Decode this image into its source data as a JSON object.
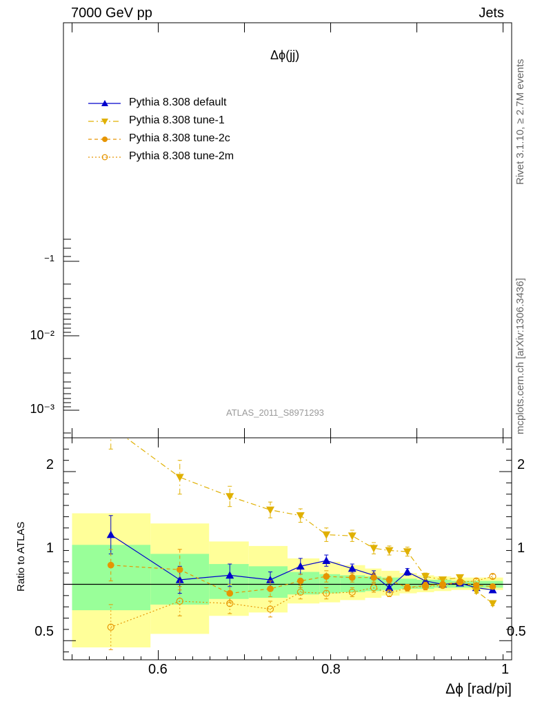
{
  "header": {
    "left": "7000 GeV pp",
    "right": "Jets"
  },
  "side_labels": {
    "rivet": "Rivet 3.1.10, ≥ 2.7M events",
    "mcplots": "mcplots.cern.ch [arXiv:1306.3436]"
  },
  "chart_data": [
    {
      "type": "scatter",
      "title": "Δϕ(jj)",
      "watermark": "ATLAS_2011_S8971293",
      "yscale": "log",
      "ytick_labels": [
        "−1",
        "10⁻²",
        "10⁻³"
      ],
      "ylabel": "",
      "legend_position": "top-left",
      "series": [
        {
          "name": "Pythia 8.308 default",
          "color": "#0000cc",
          "marker": "triangle-up-filled",
          "line": "solid"
        },
        {
          "name": "Pythia 8.308 tune-1",
          "color": "#e0b000",
          "marker": "triangle-down-filled",
          "line": "dash-dot"
        },
        {
          "name": "Pythia 8.308 tune-2c",
          "color": "#e69500",
          "marker": "circle-filled",
          "line": "dashed"
        },
        {
          "name": "Pythia 8.308 tune-2m",
          "color": "#e69500",
          "marker": "circle-open",
          "line": "dotted"
        }
      ]
    },
    {
      "type": "line",
      "ylabel": "Ratio to ATLAS",
      "xlabel": "Δϕ [rad/pi]",
      "xlim": [
        0.49,
        1.01
      ],
      "ylim": [
        0.33,
        2.3
      ],
      "xticks": [
        0.6,
        0.8,
        1.0
      ],
      "xtick_labels": [
        "0.6",
        "0.8",
        "1"
      ],
      "yticks": [
        0.5,
        1,
        2
      ],
      "ytick_labels": [
        "0.5",
        "1",
        "2"
      ],
      "reference_line": 1,
      "bins": [
        {
          "lo": 0.5,
          "hi": 0.591,
          "band1": [
            0.77,
            1.35
          ],
          "band2": [
            0.44,
            1.63
          ]
        },
        {
          "lo": 0.591,
          "hi": 0.659,
          "band1": [
            0.82,
            1.27
          ],
          "band2": [
            0.56,
            1.54
          ]
        },
        {
          "lo": 0.659,
          "hi": 0.705,
          "band1": [
            0.87,
            1.18
          ],
          "band2": [
            0.72,
            1.38
          ]
        },
        {
          "lo": 0.705,
          "hi": 0.75,
          "band1": [
            0.88,
            1.16
          ],
          "band2": [
            0.75,
            1.34
          ]
        },
        {
          "lo": 0.75,
          "hi": 0.787,
          "band1": [
            0.91,
            1.11
          ],
          "band2": [
            0.83,
            1.23
          ]
        },
        {
          "lo": 0.787,
          "hi": 0.811,
          "band1": [
            0.92,
            1.09
          ],
          "band2": [
            0.84,
            1.2
          ]
        },
        {
          "lo": 0.811,
          "hi": 0.84,
          "band1": [
            0.93,
            1.08
          ],
          "band2": [
            0.86,
            1.17
          ]
        },
        {
          "lo": 0.84,
          "hi": 0.859,
          "band1": [
            0.94,
            1.07
          ],
          "band2": [
            0.88,
            1.14
          ]
        },
        {
          "lo": 0.859,
          "hi": 0.88,
          "band1": [
            0.95,
            1.06
          ],
          "band2": [
            0.9,
            1.12
          ]
        },
        {
          "lo": 0.88,
          "hi": 0.9,
          "band1": [
            0.96,
            1.05
          ],
          "band2": [
            0.92,
            1.1
          ]
        },
        {
          "lo": 0.9,
          "hi": 0.92,
          "band1": [
            0.96,
            1.04
          ],
          "band2": [
            0.93,
            1.08
          ]
        },
        {
          "lo": 0.92,
          "hi": 0.94,
          "band1": [
            0.97,
            1.04
          ],
          "band2": [
            0.94,
            1.07
          ]
        },
        {
          "lo": 0.94,
          "hi": 0.96,
          "band1": [
            0.97,
            1.03
          ],
          "band2": [
            0.95,
            1.06
          ]
        },
        {
          "lo": 0.96,
          "hi": 0.98,
          "band1": [
            0.97,
            1.03
          ],
          "band2": [
            0.95,
            1.06
          ]
        },
        {
          "lo": 0.98,
          "hi": 1.0,
          "band1": [
            0.97,
            1.03
          ],
          "band2": [
            0.95,
            1.06
          ]
        }
      ],
      "band_colors": {
        "inner": "#99ff99",
        "outer": "#ffff99"
      },
      "series": [
        {
          "name": "Pythia 8.308 default",
          "color": "#0000cc",
          "marker": "triangle-up-filled",
          "dash": "",
          "x": [
            0.545,
            0.625,
            0.683,
            0.73,
            0.765,
            0.795,
            0.825,
            0.85,
            0.868,
            0.889,
            0.91,
            0.93,
            0.95,
            0.969,
            0.988
          ],
          "y": [
            1.44,
            1.04,
            1.08,
            1.04,
            1.16,
            1.21,
            1.14,
            1.08,
            0.97,
            1.11,
            1.03,
            1.0,
            1.01,
            0.97,
            0.95
          ],
          "err": [
            0.17,
            0.12,
            0.1,
            0.07,
            0.07,
            0.05,
            0.04,
            0.04,
            0.04,
            0.03,
            0.03,
            0.02,
            0.02,
            0.02,
            0.02
          ]
        },
        {
          "name": "Pythia 8.308 tune-1",
          "color": "#e0b000",
          "marker": "triangle-down-filled",
          "dash": "8,4,2,4",
          "x": [
            0.545,
            0.625,
            0.683,
            0.73,
            0.765,
            0.795,
            0.825,
            0.85,
            0.868,
            0.889,
            0.91,
            0.93,
            0.95,
            0.969,
            0.988
          ],
          "y": [
            2.4,
            1.95,
            1.78,
            1.66,
            1.61,
            1.44,
            1.43,
            1.32,
            1.3,
            1.29,
            1.07,
            1.04,
            1.06,
            0.94,
            0.83
          ],
          "err": [
            0.2,
            0.15,
            0.09,
            0.07,
            0.06,
            0.06,
            0.05,
            0.05,
            0.04,
            0.04,
            0.03,
            0.02,
            0.02,
            0.02,
            0.02
          ]
        },
        {
          "name": "Pythia 8.308 tune-2c",
          "color": "#e69500",
          "marker": "circle-filled",
          "dash": "5,4",
          "x": [
            0.545,
            0.625,
            0.683,
            0.73,
            0.765,
            0.795,
            0.825,
            0.85,
            0.868,
            0.889,
            0.91,
            0.93,
            0.95,
            0.969,
            0.988
          ],
          "y": [
            1.17,
            1.13,
            0.92,
            0.96,
            1.03,
            1.07,
            1.06,
            1.06,
            1.04,
            0.97,
            0.99,
            1.0,
            1.02,
            0.99,
            0.98
          ],
          "err": [
            0.14,
            0.18,
            0.08,
            0.07,
            0.06,
            0.05,
            0.04,
            0.04,
            0.03,
            0.03,
            0.03,
            0.02,
            0.02,
            0.02,
            0.02
          ]
        },
        {
          "name": "Pythia 8.308 tune-2m",
          "color": "#e69500",
          "marker": "circle-open",
          "dash": "2,3",
          "x": [
            0.545,
            0.625,
            0.683,
            0.73,
            0.765,
            0.795,
            0.825,
            0.85,
            0.868,
            0.889,
            0.91,
            0.93,
            0.95,
            0.969,
            0.988
          ],
          "y": [
            0.62,
            0.85,
            0.83,
            0.78,
            0.93,
            0.92,
            0.93,
            0.97,
            0.92,
            0.97,
            0.98,
            0.99,
            1.02,
            1.03,
            1.07
          ],
          "err": [
            0.2,
            0.13,
            0.09,
            0.07,
            0.06,
            0.05,
            0.04,
            0.04,
            0.03,
            0.03,
            0.03,
            0.02,
            0.02,
            0.02,
            0.02
          ]
        }
      ]
    }
  ]
}
